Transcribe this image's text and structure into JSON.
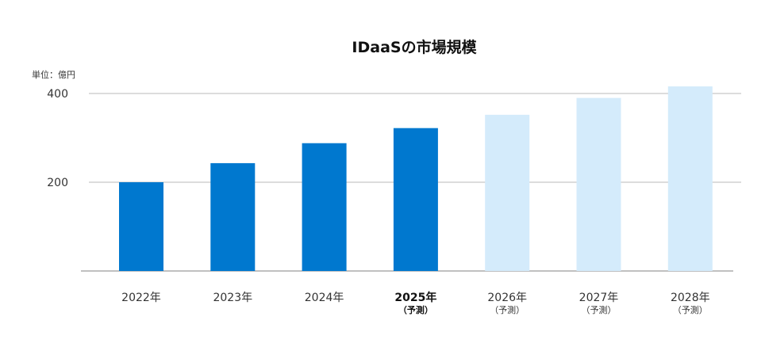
{
  "chart_data": {
    "type": "bar",
    "title": "IDaaSの市場規模",
    "unit_label": "単位：億円",
    "categories": [
      "2022年",
      "2023年",
      "2024年",
      "2025年",
      "2026年",
      "2027年",
      "2028年"
    ],
    "category_sublabels": [
      "",
      "",
      "",
      "（予測）",
      "（予測）",
      "（予測）",
      "（予測）"
    ],
    "values": [
      200,
      243,
      288,
      322,
      352,
      390,
      416
    ],
    "forecast": [
      false,
      false,
      false,
      true,
      true,
      true,
      true
    ],
    "highlighted_category_index": 3,
    "y_ticks": [
      200,
      400
    ],
    "ylim": [
      0,
      400
    ],
    "xlabel": "",
    "ylabel": "",
    "grid": true,
    "legend": "none",
    "colors": {
      "actual": "#0078cf",
      "forecast_current": "#0078cf",
      "forecast_future": "#d4ebfb"
    }
  }
}
